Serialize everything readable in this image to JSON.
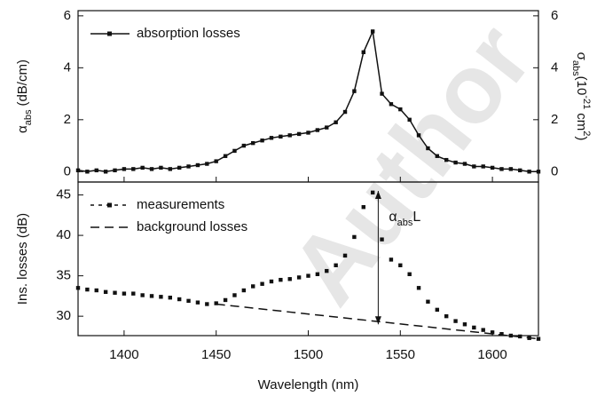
{
  "chart_data": [
    {
      "type": "line",
      "watermark": "Author",
      "ylabel": {
        "symbol": "α",
        "subscript": "abs",
        "unit": "(dB/cm)"
      },
      "y2label": {
        "symbol": "σ",
        "subscript": "abs",
        "unit_prefix": "(10",
        "exponent": "-21",
        "unit": "cm",
        "unit_exponent": "2",
        "close": ")"
      },
      "xlim": [
        1375,
        1625
      ],
      "xticks": [
        1400,
        1450,
        1500,
        1550,
        1600
      ],
      "ylim": [
        -0.4,
        6.2
      ],
      "yticks": [
        0,
        2,
        4,
        6
      ],
      "y2lim": [
        -0.4,
        6.2
      ],
      "y2ticks": [
        0,
        2,
        4,
        6
      ],
      "legend": "upper left",
      "x": [
        1375,
        1380,
        1385,
        1390,
        1395,
        1400,
        1405,
        1410,
        1415,
        1420,
        1425,
        1430,
        1435,
        1440,
        1445,
        1450,
        1455,
        1460,
        1465,
        1470,
        1475,
        1480,
        1485,
        1490,
        1495,
        1500,
        1505,
        1510,
        1515,
        1520,
        1525,
        1530,
        1535,
        1540,
        1545,
        1550,
        1555,
        1560,
        1565,
        1570,
        1575,
        1580,
        1585,
        1590,
        1595,
        1600,
        1605,
        1610,
        1615,
        1620,
        1625
      ],
      "series": [
        {
          "name": "absorption losses",
          "color": "#111111",
          "line": "solid",
          "marker": "square",
          "values": [
            0.05,
            0.0,
            0.05,
            0.0,
            0.05,
            0.1,
            0.1,
            0.15,
            0.1,
            0.15,
            0.1,
            0.15,
            0.2,
            0.25,
            0.3,
            0.4,
            0.6,
            0.8,
            1.0,
            1.1,
            1.2,
            1.3,
            1.35,
            1.4,
            1.45,
            1.5,
            1.6,
            1.7,
            1.9,
            2.3,
            3.1,
            4.6,
            5.4,
            3.0,
            2.6,
            2.4,
            2.0,
            1.4,
            0.9,
            0.6,
            0.45,
            0.35,
            0.3,
            0.2,
            0.2,
            0.15,
            0.1,
            0.1,
            0.05,
            0.0,
            0.0
          ]
        }
      ]
    },
    {
      "type": "line",
      "ylabel": "Ins. losses (dB)",
      "xlabel": "Wavelength (nm)",
      "xlim": [
        1375,
        1625
      ],
      "xticks": [
        1400,
        1450,
        1500,
        1550,
        1600
      ],
      "ylim": [
        27.6,
        46.6
      ],
      "yticks": [
        30,
        35,
        40,
        45
      ],
      "legend": "upper left",
      "x": [
        1375,
        1380,
        1385,
        1390,
        1395,
        1400,
        1405,
        1410,
        1415,
        1420,
        1425,
        1430,
        1435,
        1440,
        1445,
        1450,
        1455,
        1460,
        1465,
        1470,
        1475,
        1480,
        1485,
        1490,
        1495,
        1500,
        1505,
        1510,
        1515,
        1520,
        1525,
        1530,
        1535,
        1540,
        1545,
        1550,
        1555,
        1560,
        1565,
        1570,
        1575,
        1580,
        1585,
        1590,
        1595,
        1600,
        1605,
        1610,
        1615,
        1620,
        1625
      ],
      "series": [
        {
          "name": "measurements",
          "color": "#111111",
          "line": "none",
          "marker": "square",
          "values": [
            33.5,
            33.3,
            33.2,
            33.0,
            32.9,
            32.8,
            32.8,
            32.6,
            32.5,
            32.4,
            32.3,
            32.1,
            31.9,
            31.7,
            31.5,
            31.6,
            32.0,
            32.6,
            33.2,
            33.7,
            34.0,
            34.3,
            34.5,
            34.6,
            34.8,
            35.0,
            35.2,
            35.6,
            36.3,
            37.5,
            39.8,
            43.5,
            45.3,
            39.5,
            37.0,
            36.3,
            35.2,
            33.5,
            31.8,
            30.8,
            30.0,
            29.4,
            29.0,
            28.6,
            28.3,
            28.0,
            27.8,
            27.6,
            27.5,
            27.3,
            27.2
          ]
        },
        {
          "name": "background losses",
          "color": "#111111",
          "line": "dashed",
          "marker": "none",
          "x": [
            1450,
            1625
          ],
          "values": [
            31.5,
            27.2
          ]
        }
      ],
      "annotation": {
        "symbol": "α",
        "subscript": "abs",
        "suffix": "L",
        "x": 1538,
        "from": 29,
        "to": 45.5
      }
    }
  ]
}
